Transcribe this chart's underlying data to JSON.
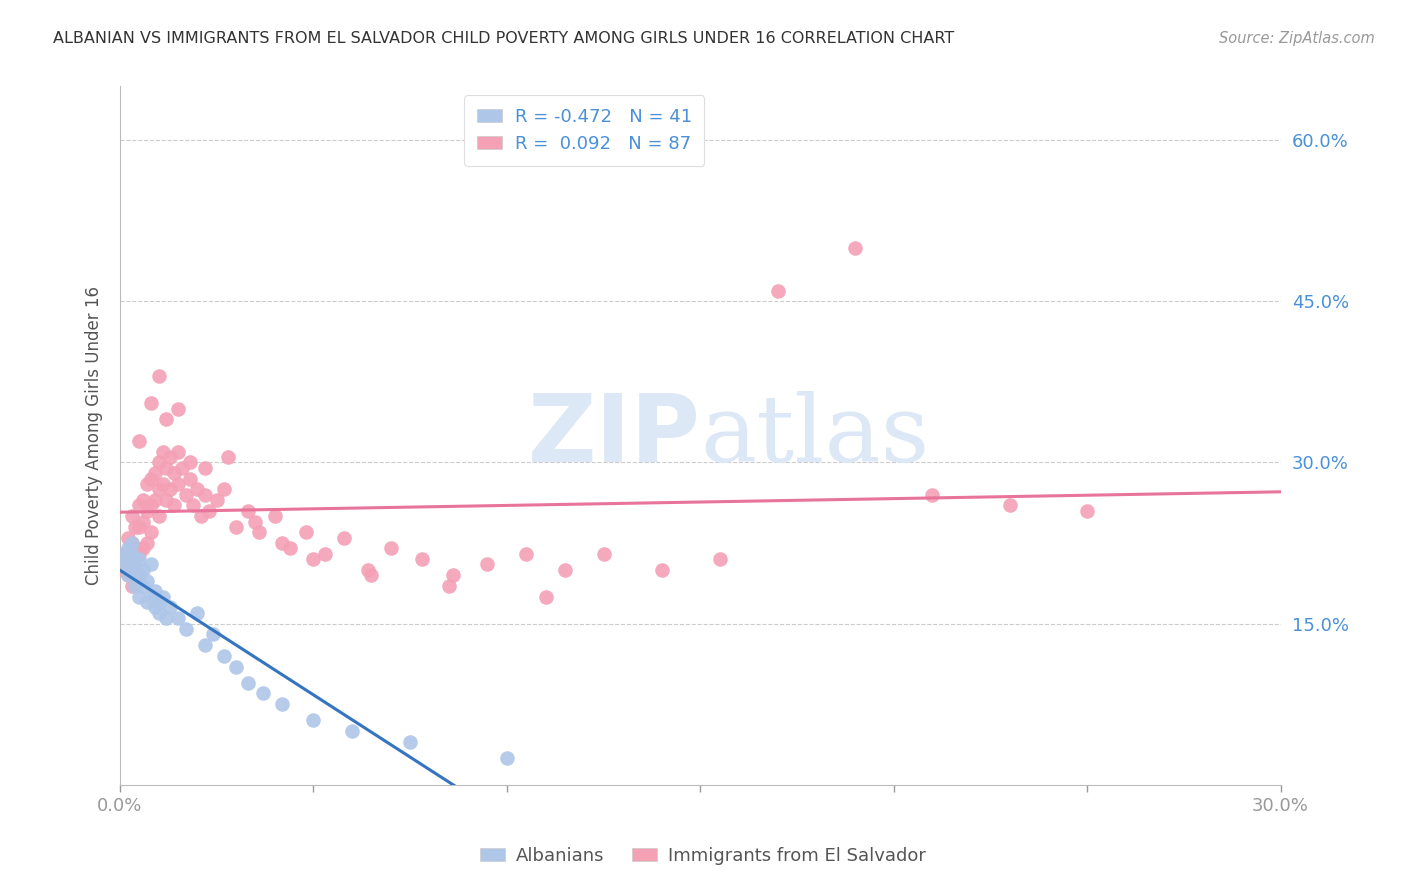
{
  "title": "ALBANIAN VS IMMIGRANTS FROM EL SALVADOR CHILD POVERTY AMONG GIRLS UNDER 16 CORRELATION CHART",
  "source": "Source: ZipAtlas.com",
  "ylabel": "Child Poverty Among Girls Under 16",
  "xlim": [
    0.0,
    0.3
  ],
  "ylim": [
    0.0,
    0.65
  ],
  "yticks": [
    0.15,
    0.3,
    0.45,
    0.6
  ],
  "ytick_labels": [
    "15.0%",
    "30.0%",
    "45.0%",
    "60.0%"
  ],
  "xticks": [
    0.0,
    0.05,
    0.1,
    0.15,
    0.2,
    0.25,
    0.3
  ],
  "xtick_labels": [
    "0.0%",
    "",
    "",
    "",
    "",
    "",
    "30.0%"
  ],
  "legend_albanians": "Albanians",
  "legend_salvador": "Immigrants from El Salvador",
  "albanians_R": -0.472,
  "albanians_N": 41,
  "salvador_R": 0.092,
  "salvador_N": 87,
  "color_albanians": "#aec6e8",
  "color_salvador": "#f4a0b5",
  "color_albanians_line": "#3575c0",
  "color_salvador_line": "#e8749a",
  "background_color": "#ffffff",
  "watermark_color": "#dce8f5",
  "albanians_x": [
    0.001,
    0.001,
    0.002,
    0.002,
    0.002,
    0.003,
    0.003,
    0.003,
    0.004,
    0.004,
    0.004,
    0.005,
    0.005,
    0.005,
    0.006,
    0.006,
    0.007,
    0.007,
    0.008,
    0.008,
    0.009,
    0.009,
    0.01,
    0.01,
    0.011,
    0.012,
    0.013,
    0.015,
    0.017,
    0.02,
    0.022,
    0.024,
    0.027,
    0.03,
    0.033,
    0.037,
    0.042,
    0.05,
    0.06,
    0.075,
    0.1
  ],
  "albanians_y": [
    0.215,
    0.205,
    0.22,
    0.195,
    0.21,
    0.225,
    0.2,
    0.215,
    0.205,
    0.195,
    0.185,
    0.21,
    0.195,
    0.175,
    0.2,
    0.185,
    0.19,
    0.17,
    0.205,
    0.175,
    0.165,
    0.18,
    0.17,
    0.16,
    0.175,
    0.155,
    0.165,
    0.155,
    0.145,
    0.16,
    0.13,
    0.14,
    0.12,
    0.11,
    0.095,
    0.085,
    0.075,
    0.06,
    0.05,
    0.04,
    0.025
  ],
  "salvador_x": [
    0.001,
    0.001,
    0.002,
    0.002,
    0.002,
    0.003,
    0.003,
    0.003,
    0.003,
    0.004,
    0.004,
    0.004,
    0.005,
    0.005,
    0.005,
    0.005,
    0.006,
    0.006,
    0.006,
    0.007,
    0.007,
    0.007,
    0.008,
    0.008,
    0.008,
    0.009,
    0.009,
    0.01,
    0.01,
    0.01,
    0.011,
    0.011,
    0.012,
    0.012,
    0.013,
    0.013,
    0.014,
    0.014,
    0.015,
    0.015,
    0.016,
    0.017,
    0.018,
    0.019,
    0.02,
    0.021,
    0.022,
    0.023,
    0.025,
    0.027,
    0.03,
    0.033,
    0.036,
    0.04,
    0.044,
    0.048,
    0.053,
    0.058,
    0.064,
    0.07,
    0.078,
    0.086,
    0.095,
    0.105,
    0.115,
    0.125,
    0.14,
    0.155,
    0.17,
    0.19,
    0.21,
    0.23,
    0.005,
    0.008,
    0.01,
    0.012,
    0.015,
    0.018,
    0.022,
    0.028,
    0.035,
    0.042,
    0.05,
    0.065,
    0.085,
    0.11,
    0.25
  ],
  "salvador_y": [
    0.215,
    0.2,
    0.23,
    0.215,
    0.195,
    0.25,
    0.225,
    0.205,
    0.185,
    0.24,
    0.22,
    0.2,
    0.26,
    0.24,
    0.215,
    0.195,
    0.265,
    0.245,
    0.22,
    0.28,
    0.255,
    0.225,
    0.285,
    0.26,
    0.235,
    0.29,
    0.265,
    0.3,
    0.275,
    0.25,
    0.31,
    0.28,
    0.295,
    0.265,
    0.305,
    0.275,
    0.29,
    0.26,
    0.31,
    0.28,
    0.295,
    0.27,
    0.285,
    0.26,
    0.275,
    0.25,
    0.27,
    0.255,
    0.265,
    0.275,
    0.24,
    0.255,
    0.235,
    0.25,
    0.22,
    0.235,
    0.215,
    0.23,
    0.2,
    0.22,
    0.21,
    0.195,
    0.205,
    0.215,
    0.2,
    0.215,
    0.2,
    0.21,
    0.46,
    0.5,
    0.27,
    0.26,
    0.32,
    0.355,
    0.38,
    0.34,
    0.35,
    0.3,
    0.295,
    0.305,
    0.245,
    0.225,
    0.21,
    0.195,
    0.185,
    0.175,
    0.255
  ]
}
